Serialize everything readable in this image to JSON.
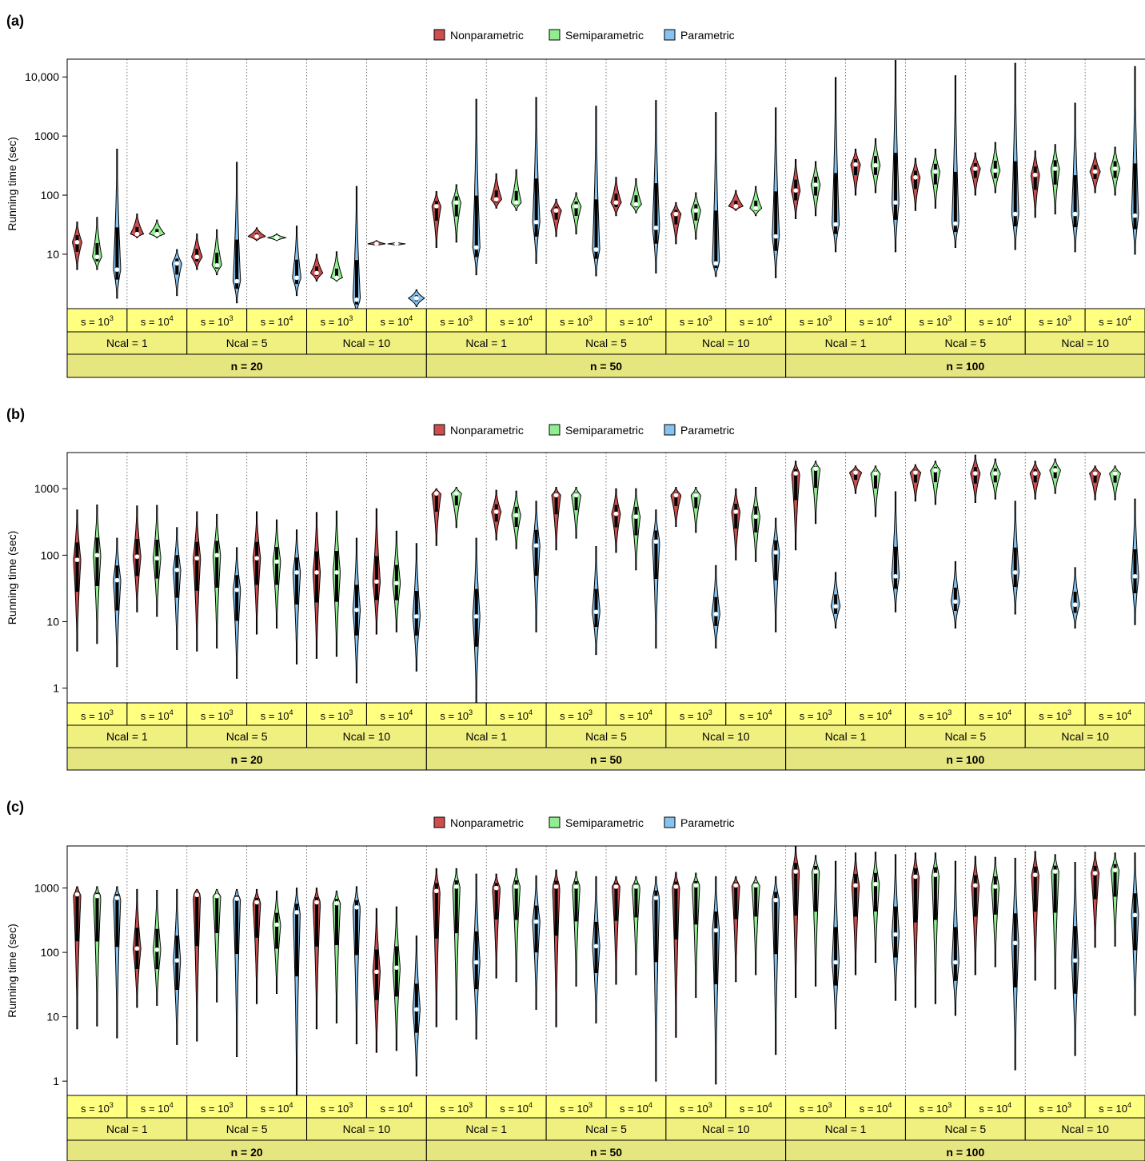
{
  "figure": {
    "groups": [
      "n = 20",
      "n = 50",
      "n = 100"
    ],
    "ncal": [
      "Ncal = 1",
      "Ncal = 5",
      "Ncal = 10"
    ],
    "s_labels": [
      {
        "base": "s = 10",
        "exp": "3"
      },
      {
        "base": "s = 10",
        "exp": "4"
      }
    ],
    "legend": [
      {
        "name": "Nonparametric",
        "color": "#cd4e4e"
      },
      {
        "name": "Semiparametric",
        "color": "#90ee90"
      },
      {
        "name": "Parametric",
        "color": "#87c3ee"
      }
    ],
    "strip_colors": {
      "s_row": "#ffff80",
      "ncal_row": "#f0f080",
      "n_row": "#e6e680"
    },
    "median_point_color": "#ffffff"
  },
  "chart_data": [
    {
      "type": "violin",
      "panel_label": "(a)",
      "ylabel": "Running time (sec)",
      "y_scale": "log",
      "ylim": [
        1.2,
        20000
      ],
      "yticks": [
        10,
        100,
        1000,
        10000
      ],
      "ytick_labels": [
        "10",
        "100",
        "1000",
        "10,000"
      ],
      "grid": "dotted vertical separators",
      "legend_position": "top-center",
      "series_order": [
        "Nonparametric",
        "Semiparametric",
        "Parametric"
      ],
      "median": [
        16,
        9,
        5.5,
        22,
        22,
        7,
        9,
        6.5,
        3.5,
        20,
        19,
        4,
        4.8,
        4,
        1.7,
        15,
        15,
        1.8,
        65,
        75,
        13,
        85,
        75,
        35,
        55,
        65,
        12,
        75,
        70,
        28,
        48,
        55,
        7,
        65,
        60,
        20,
        120,
        150,
        32,
        330,
        320,
        75,
        200,
        250,
        33,
        280,
        260,
        48,
        220,
        280,
        48,
        250,
        280,
        45
      ],
      "min": [
        5.5,
        5.5,
        1.8,
        19,
        19,
        2,
        5.5,
        4.5,
        1.5,
        17,
        17,
        2,
        3.5,
        3.5,
        1.0,
        14,
        14,
        1.3,
        13,
        16,
        4.5,
        60,
        55,
        7,
        20,
        22,
        4.3,
        45,
        50,
        4.8,
        15,
        18,
        4.2,
        55,
        45,
        4,
        40,
        45,
        11,
        100,
        110,
        11,
        55,
        60,
        13,
        100,
        110,
        12,
        42,
        48,
        11,
        110,
        100,
        10
      ],
      "max": [
        35,
        42,
        600,
        48,
        38,
        12,
        22,
        26,
        360,
        28,
        22,
        30,
        10,
        11,
        140,
        17,
        16,
        2.5,
        115,
        150,
        4200,
        230,
        270,
        4500,
        85,
        110,
        3200,
        200,
        190,
        4000,
        75,
        110,
        2500,
        120,
        140,
        3000,
        400,
        370,
        9800,
        600,
        900,
        19000,
        420,
        600,
        10500,
        520,
        780,
        17000,
        560,
        720,
        3600,
        520,
        650,
        15000
      ]
    },
    {
      "type": "violin",
      "panel_label": "(b)",
      "ylabel": "Running time (sec)",
      "y_scale": "log",
      "ylim": [
        0.6,
        3500
      ],
      "yticks": [
        1,
        10,
        100,
        1000
      ],
      "ytick_labels": [
        "1",
        "10",
        "100",
        "1000"
      ],
      "grid": "dotted vertical separators",
      "legend_position": "top-center",
      "series_order": [
        "Nonparametric",
        "Semiparametric",
        "Parametric"
      ],
      "median": [
        85,
        100,
        42,
        95,
        90,
        60,
        90,
        100,
        30,
        90,
        80,
        55,
        55,
        55,
        15,
        40,
        38,
        12,
        850,
        850,
        12,
        450,
        400,
        140,
        800,
        800,
        14,
        420,
        380,
        160,
        800,
        800,
        13,
        450,
        380,
        110,
        1700,
        2000,
        17,
        1750,
        1700,
        48,
        1750,
        1900,
        20,
        1700,
        1700,
        55,
        1700,
        1900,
        18,
        1700,
        1700,
        48
      ],
      "min": [
        3.6,
        4.7,
        2.1,
        14,
        12,
        3.8,
        3.6,
        4.0,
        1.4,
        6.5,
        8,
        2.3,
        2.8,
        3.0,
        1.2,
        6.5,
        7,
        1.8,
        140,
        260,
        0.6,
        170,
        125,
        7,
        120,
        180,
        3.2,
        110,
        60,
        4,
        270,
        220,
        4,
        85,
        80,
        7,
        120,
        300,
        8,
        850,
        380,
        14,
        650,
        580,
        8,
        620,
        700,
        13,
        700,
        850,
        8,
        680,
        680,
        9
      ],
      "max": [
        480,
        570,
        180,
        550,
        560,
        260,
        450,
        410,
        130,
        450,
        340,
        240,
        440,
        460,
        180,
        500,
        230,
        150,
        1000,
        1050,
        180,
        950,
        920,
        650,
        1050,
        1050,
        135,
        1000,
        1000,
        480,
        1050,
        1050,
        70,
        1000,
        1050,
        360,
        2600,
        2600,
        55,
        2200,
        2200,
        900,
        2300,
        2600,
        80,
        3200,
        2800,
        650,
        2600,
        2800,
        65,
        2200,
        2200,
        700
      ]
    },
    {
      "type": "violin",
      "panel_label": "(c)",
      "ylabel": "Running time (sec)",
      "y_scale": "log",
      "ylim": [
        0.6,
        4500
      ],
      "yticks": [
        1,
        10,
        100,
        1000
      ],
      "ytick_labels": [
        "1",
        "10",
        "100",
        "1000"
      ],
      "grid": "dotted vertical separators",
      "legend_position": "top-center",
      "series_order": [
        "Nonparametric",
        "Semiparametric",
        "Parametric"
      ],
      "median": [
        800,
        750,
        700,
        115,
        110,
        75,
        780,
        750,
        680,
        600,
        270,
        420,
        600,
        580,
        500,
        50,
        58,
        13,
        900,
        1050,
        70,
        1000,
        1050,
        300,
        1050,
        1050,
        125,
        1050,
        1050,
        700,
        1050,
        1100,
        220,
        1100,
        1100,
        650,
        1800,
        1800,
        70,
        1100,
        1150,
        190,
        1500,
        1600,
        70,
        1100,
        1050,
        140,
        1600,
        1800,
        75,
        1700,
        1900,
        380
      ],
      "min": [
        6.5,
        7.2,
        4.7,
        14,
        15,
        3.7,
        4.2,
        17,
        2.4,
        16,
        23,
        0.6,
        6.5,
        8,
        3.8,
        2.8,
        3.0,
        1.2,
        7,
        9,
        4.5,
        40,
        35,
        13,
        7,
        30,
        8,
        32,
        45,
        1.0,
        4.8,
        20,
        0.9,
        35,
        45,
        2.6,
        20,
        30,
        6.5,
        45,
        70,
        18,
        14,
        16,
        10.5,
        45,
        60,
        1.5,
        37,
        27,
        2.5,
        120,
        125,
        10.5
      ],
      "max": [
        1050,
        1050,
        1050,
        950,
        920,
        950,
        950,
        950,
        950,
        950,
        900,
        1000,
        1000,
        900,
        1050,
        480,
        510,
        180,
        2000,
        2000,
        1650,
        1650,
        2000,
        1550,
        1900,
        1800,
        1500,
        1500,
        1500,
        1500,
        1750,
        1700,
        1500,
        1500,
        1500,
        1500,
        4400,
        3200,
        2600,
        3500,
        3600,
        3300,
        3500,
        3500,
        2600,
        3100,
        3000,
        2900,
        3700,
        3300,
        2500,
        3600,
        3500,
        3500
      ]
    }
  ]
}
